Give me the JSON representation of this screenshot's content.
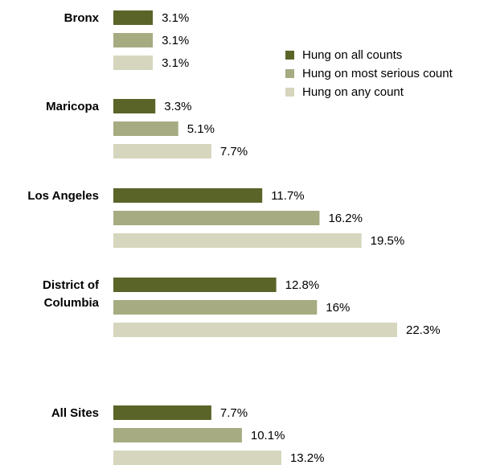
{
  "chart_data": {
    "type": "bar",
    "orientation": "horizontal",
    "categories": [
      [
        "Bronx"
      ],
      [
        "Maricopa"
      ],
      [
        "Los Angeles"
      ],
      [
        "District of",
        "Columbia"
      ],
      [
        "All Sites"
      ]
    ],
    "series": [
      {
        "name": "Hung on all counts",
        "color": "#5a6428",
        "values": [
          3.1,
          3.3,
          11.7,
          12.8,
          7.7
        ],
        "labels": [
          "3.1%",
          "3.3%",
          "11.7%",
          "12.8%",
          "7.7%"
        ]
      },
      {
        "name": "Hung on most serious count",
        "color": "#a7ab82",
        "values": [
          3.1,
          5.1,
          16.2,
          16,
          10.1
        ],
        "labels": [
          "3.1%",
          "5.1%",
          "16.2%",
          "16%",
          "10.1%"
        ]
      },
      {
        "name": "Hung on any count",
        "color": "#d5d6bd",
        "values": [
          3.1,
          7.7,
          19.5,
          22.3,
          13.2
        ],
        "labels": [
          "3.1%",
          "7.7%",
          "19.5%",
          "22.3%",
          "13.2%"
        ]
      }
    ],
    "title": "",
    "xlabel": "",
    "ylabel": "",
    "xlim": [
      0,
      22.3
    ],
    "grid": false,
    "legend_position": "top-right"
  }
}
